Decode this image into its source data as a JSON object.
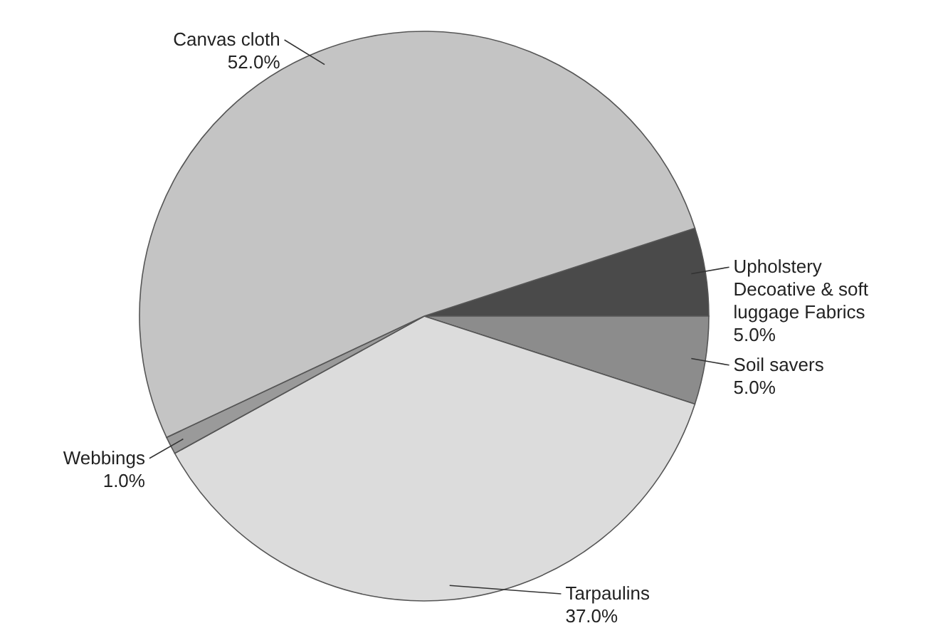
{
  "chart_data": {
    "type": "pie",
    "categories": [
      "Upholstery Decoative & soft luggage Fabrics",
      "Soil savers",
      "Tarpaulins",
      "Webbings",
      "Canvas cloth"
    ],
    "values": [
      5,
      5,
      37,
      1,
      52
    ],
    "colors": [
      "#4a4a4a",
      "#8c8c8c",
      "#dcdcdc",
      "#9a9a9a",
      "#c4c4c4"
    ],
    "value_labels": [
      "5.0%",
      "5.0%",
      "37.0%",
      "1.0%",
      "52.0%"
    ]
  }
}
